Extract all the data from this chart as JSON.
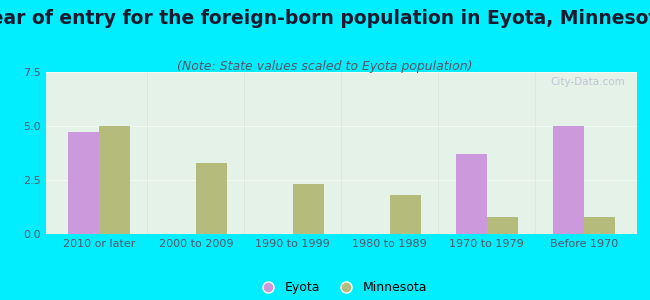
{
  "title": "Year of entry for the foreign-born population in Eyota, Minnesota",
  "subtitle": "(Note: State values scaled to Eyota population)",
  "categories": [
    "2010 or later",
    "2000 to 2009",
    "1990 to 1999",
    "1980 to 1989",
    "1970 to 1979",
    "Before 1970"
  ],
  "eyota_values": [
    4.7,
    0,
    0,
    0,
    3.7,
    5.0
  ],
  "minnesota_values": [
    5.0,
    3.3,
    2.3,
    1.8,
    0.8,
    0.8
  ],
  "eyota_color": "#cc99dd",
  "minnesota_color": "#b5bb7a",
  "background_outer": "#00eeff",
  "background_plot_top": "#e8f5f0",
  "background_plot_bottom": "#d8f0e0",
  "ylim": [
    0,
    7.5
  ],
  "yticks": [
    0,
    2.5,
    5,
    7.5
  ],
  "bar_width": 0.32,
  "title_fontsize": 13.5,
  "subtitle_fontsize": 9,
  "tick_fontsize": 8,
  "legend_fontsize": 9,
  "title_color": "#1a1a2e",
  "subtitle_color": "#555566",
  "tick_color": "#555566"
}
